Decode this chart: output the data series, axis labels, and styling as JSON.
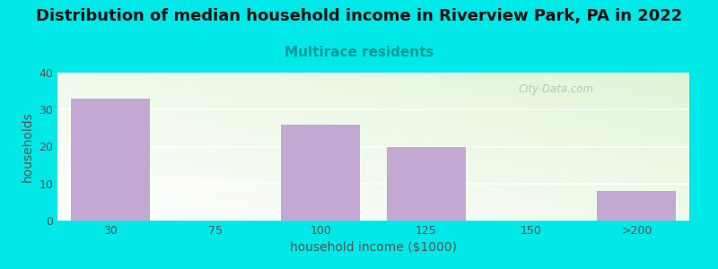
{
  "title": "Distribution of median household income in Riverview Park, PA in 2022",
  "subtitle": "Multirace residents",
  "xlabel": "household income ($1000)",
  "ylabel": "households",
  "categories": [
    "30",
    "75",
    "100",
    "125",
    "150",
    ">200"
  ],
  "values": [
    33,
    0,
    26,
    20,
    0,
    8
  ],
  "bar_color": "#c4a8d4",
  "background_color": "#00e8e8",
  "ylim": [
    0,
    40
  ],
  "yticks": [
    0,
    10,
    20,
    30,
    40
  ],
  "title_fontsize": 13,
  "subtitle_fontsize": 11,
  "subtitle_color": "#009999",
  "axis_label_fontsize": 10,
  "tick_fontsize": 9,
  "tick_color": "#555555",
  "label_color": "#555555",
  "watermark": "City-Data.com",
  "bar_width": 0.75
}
